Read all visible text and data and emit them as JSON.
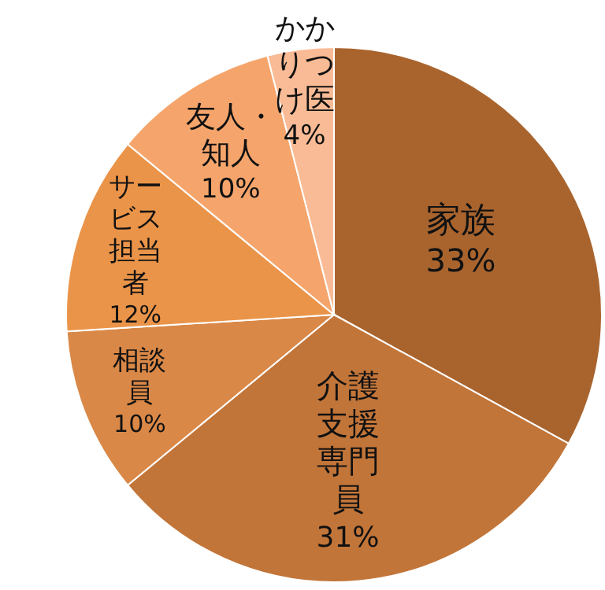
{
  "chart_data": {
    "type": "pie",
    "categories": [
      "家族",
      "介護支援専門員",
      "相談員",
      "サービス担当者",
      "友人・知人",
      "かかりつけ医"
    ],
    "values": [
      33,
      31,
      10,
      12,
      10,
      4
    ],
    "value_labels": [
      "33%",
      "31%",
      "10%",
      "12%",
      "10%",
      "4%"
    ],
    "colors": [
      "#a9642e",
      "#c27539",
      "#d98847",
      "#ea9449",
      "#f5a56c",
      "#f9bb95"
    ]
  }
}
